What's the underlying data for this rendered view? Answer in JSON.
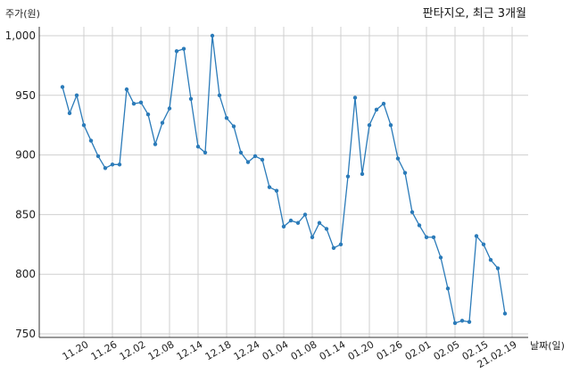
{
  "colors": {
    "line": "#2b7bb9",
    "grid": "#cfcfcf"
  },
  "chart_data": {
    "type": "line",
    "title": "판타지오, 최근 3개월",
    "ylabel": "주가(원)",
    "xlabel": "날짜(일)",
    "ylim": [
      750,
      1000
    ],
    "yticks": [
      750,
      800,
      850,
      900,
      950,
      1000
    ],
    "ytick_labels": [
      "750",
      "800",
      "850",
      "900",
      "950",
      "1,000"
    ],
    "xtick_labels": [
      "11.20",
      "11.26",
      "12.02",
      "12.08",
      "12.14",
      "12.18",
      "12.24",
      "01.04",
      "01.08",
      "01.14",
      "01.20",
      "01.26",
      "02.01",
      "02.05",
      "02.15",
      "21.02.19"
    ],
    "xtick_positions": [
      3,
      7,
      11,
      15,
      19,
      23,
      27,
      31,
      35,
      39,
      43,
      47,
      51,
      55,
      59,
      63
    ],
    "grid": true,
    "series": [
      {
        "values": [
          957,
          935,
          950,
          925,
          912,
          899,
          889,
          892,
          892,
          955,
          943,
          944,
          934,
          909,
          927,
          939,
          987,
          989,
          947,
          907,
          902,
          1000,
          950,
          931,
          924,
          902,
          894,
          899,
          896,
          873,
          870,
          840,
          845,
          843,
          850,
          831,
          843,
          838,
          822,
          825,
          882,
          948,
          884,
          925,
          938,
          943,
          925,
          897,
          885,
          852,
          841,
          831,
          831,
          814,
          788,
          759,
          761,
          760,
          832,
          825,
          812,
          805,
          767
        ]
      }
    ]
  }
}
